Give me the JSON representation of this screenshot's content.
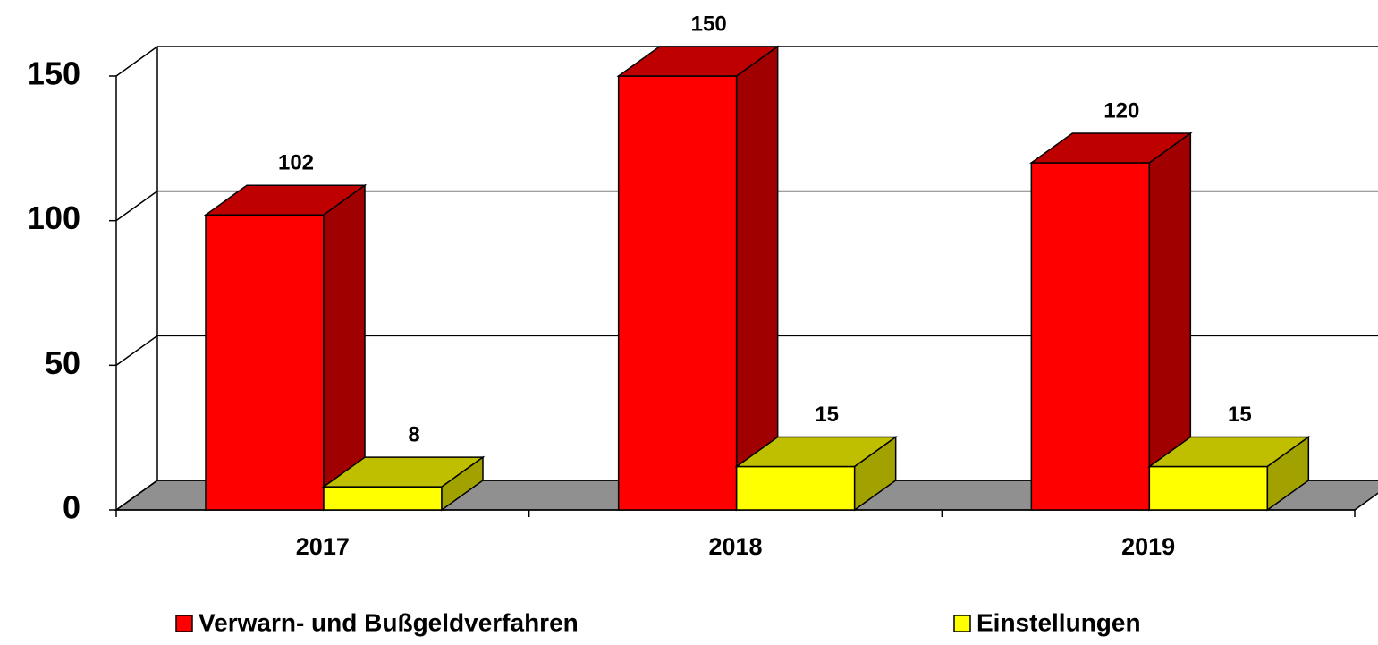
{
  "chart_data": {
    "type": "bar",
    "categories": [
      "2017",
      "2018",
      "2019"
    ],
    "series": [
      {
        "name": "Verwarn- und Bußgeldverfahren",
        "color": "#ff0000",
        "values": [
          102,
          150,
          120
        ]
      },
      {
        "name": "Einstellungen",
        "color": "#ffff00",
        "values": [
          8,
          15,
          15
        ]
      }
    ],
    "ylim": [
      0,
      150
    ],
    "yticks": [
      0,
      50,
      100,
      150
    ],
    "grid": true
  }
}
